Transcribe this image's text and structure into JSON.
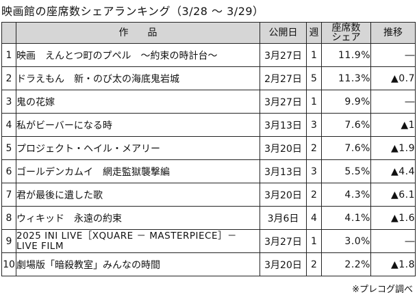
{
  "title": "映画館の座席数シェアランキング（3/28 ～ 3/29）",
  "headers": {
    "title": "作　　品",
    "date": "公開日",
    "week": "週",
    "share": "座席数\nシェア",
    "trend": "推移"
  },
  "rows": [
    {
      "rank": "1",
      "title": "映画　えんとつ町のプペル　～約束の時計台～",
      "date": "3月27日",
      "week": "1",
      "share": "11.9%",
      "trend": "―"
    },
    {
      "rank": "2",
      "title": "ドラえもん　新・のび太の海底鬼岩城",
      "date": "2月27日",
      "week": "5",
      "share": "11.3%",
      "trend": "▲0.7"
    },
    {
      "rank": "3",
      "title": "鬼の花嫁",
      "date": "3月27日",
      "week": "1",
      "share": "9.9%",
      "trend": "―"
    },
    {
      "rank": "4",
      "title": "私がビーバーになる時",
      "date": "3月13日",
      "week": "3",
      "share": "7.6%",
      "trend": "▲1"
    },
    {
      "rank": "5",
      "title": "プロジェクト・ヘイル・メアリー",
      "date": "3月20日",
      "week": "2",
      "share": "7.6%",
      "trend": "▲1.9"
    },
    {
      "rank": "6",
      "title": "ゴールデンカムイ　網走監獄襲撃編",
      "date": "3月13日",
      "week": "3",
      "share": "5.5%",
      "trend": "▲4.4"
    },
    {
      "rank": "7",
      "title": "君が最後に遺した歌",
      "date": "3月20日",
      "week": "2",
      "share": "4.3%",
      "trend": "▲6.1"
    },
    {
      "rank": "8",
      "title": "ウィキッド　永遠の約束",
      "date": "3月6日",
      "week": "4",
      "share": "4.1%",
      "trend": "▲1.6"
    },
    {
      "rank": "9",
      "title": "2025 INI LIVE［XQUARE － MASTERPIECE］－ LIVE FILM",
      "date": "3月27日",
      "week": "1",
      "share": "3.0%",
      "trend": "―"
    },
    {
      "rank": "10",
      "title": "劇場版「暗殺教室」みんなの時間",
      "date": "3月20日",
      "week": "2",
      "share": "2.2%",
      "trend": "▲1.8"
    }
  ],
  "source": "※プレコグ調べ"
}
